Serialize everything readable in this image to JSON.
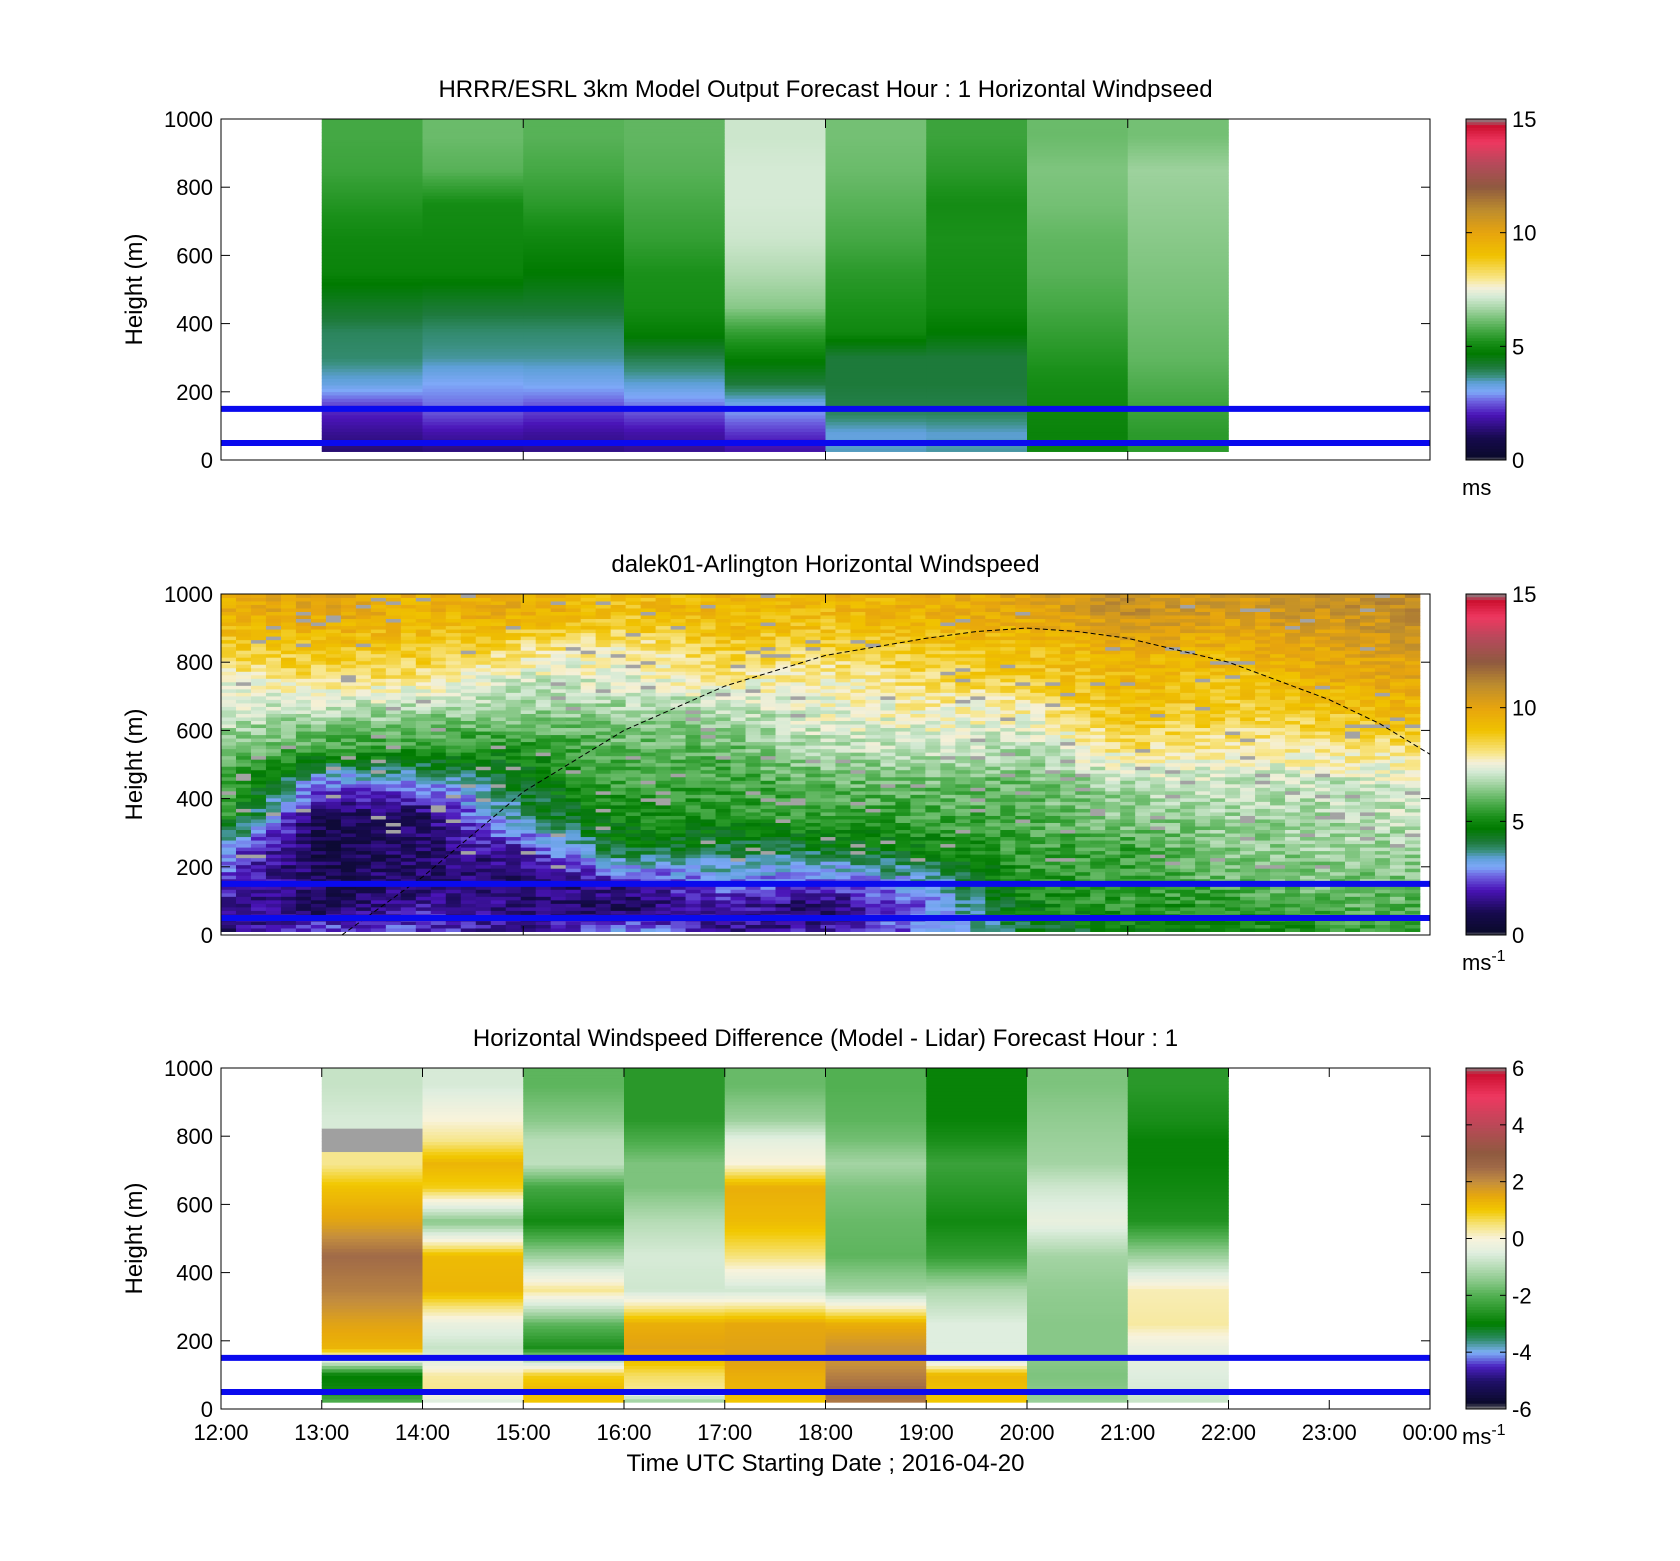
{
  "chart_data": [
    {
      "type": "heatmap",
      "title": "HRRR/ESRL 3km Model Output   Forecast Hour : 1 Horizontal Windpseed",
      "ylabel": "Height (m)",
      "ylim": [
        0,
        1000
      ],
      "yticks": [
        0,
        200,
        400,
        600,
        800,
        1000
      ],
      "xlim": [
        12,
        24
      ],
      "xticks": [
        12,
        15,
        18,
        21
      ],
      "colorbar": {
        "min": 0,
        "max": 15,
        "ticks": [
          0,
          5,
          10,
          15
        ],
        "unit": "ms",
        "unit_sup": ""
      },
      "reference_lines_m": [
        50,
        150
      ],
      "columns": [
        {
          "t0": 13,
          "t1": 14,
          "zmin": 25,
          "heights": [
            25,
            75,
            150,
            225,
            300,
            375,
            450,
            550,
            650,
            750,
            850,
            950
          ],
          "values": [
            1.3,
            1.6,
            2.2,
            3.3,
            3.8,
            3.9,
            4.3,
            4.9,
            5.0,
            5.3,
            5.6,
            5.7
          ]
        },
        {
          "t0": 14,
          "t1": 15,
          "zmin": 25,
          "heights": [
            25,
            75,
            150,
            225,
            300,
            375,
            450,
            550,
            650,
            750,
            850,
            950
          ],
          "values": [
            1.4,
            1.8,
            2.6,
            3.0,
            3.6,
            3.8,
            4.2,
            4.9,
            5.0,
            5.1,
            5.9,
            6.1
          ]
        },
        {
          "t0": 15,
          "t1": 16,
          "zmin": 25,
          "heights": [
            25,
            75,
            150,
            225,
            300,
            375,
            450,
            550,
            650,
            750,
            850,
            950
          ],
          "values": [
            1.5,
            1.7,
            2.4,
            3.1,
            3.6,
            3.8,
            4.2,
            4.7,
            5.0,
            5.4,
            5.7,
            5.9
          ]
        },
        {
          "t0": 16,
          "t1": 17,
          "zmin": 25,
          "heights": [
            25,
            75,
            150,
            225,
            300,
            375,
            450,
            550,
            650,
            750,
            850,
            950
          ],
          "values": [
            1.6,
            1.8,
            2.6,
            3.4,
            4.0,
            4.8,
            5.1,
            5.2,
            5.5,
            5.7,
            5.9,
            6.0
          ]
        },
        {
          "t0": 17,
          "t1": 18,
          "zmin": 25,
          "heights": [
            25,
            75,
            150,
            225,
            300,
            375,
            450,
            550,
            650,
            750,
            850,
            950
          ],
          "values": [
            1.8,
            2.2,
            3.0,
            4.1,
            4.8,
            5.5,
            6.4,
            6.8,
            7.1,
            7.2,
            7.2,
            7.1
          ]
        },
        {
          "t0": 18,
          "t1": 19,
          "zmin": 25,
          "heights": [
            25,
            75,
            150,
            225,
            300,
            375,
            450,
            550,
            650,
            750,
            850,
            950
          ],
          "values": [
            3.5,
            3.3,
            4.0,
            4.1,
            4.1,
            5.0,
            5.2,
            5.4,
            5.7,
            5.9,
            6.1,
            6.2
          ]
        },
        {
          "t0": 19,
          "t1": 20,
          "zmin": 25,
          "heights": [
            25,
            75,
            150,
            225,
            300,
            375,
            450,
            550,
            650,
            750,
            850,
            950
          ],
          "values": [
            3.6,
            3.4,
            4.0,
            4.1,
            4.1,
            4.7,
            5.0,
            5.1,
            5.2,
            5.1,
            5.4,
            5.6
          ]
        },
        {
          "t0": 20,
          "t1": 21,
          "zmin": 25,
          "heights": [
            25,
            75,
            150,
            225,
            300,
            375,
            450,
            550,
            650,
            750,
            850,
            950
          ],
          "values": [
            5.0,
            4.9,
            5.0,
            5.1,
            5.3,
            5.5,
            5.7,
            5.9,
            6.0,
            6.2,
            6.3,
            6.1
          ]
        },
        {
          "t0": 21,
          "t1": 22,
          "zmin": 25,
          "heights": [
            25,
            75,
            150,
            225,
            300,
            375,
            450,
            550,
            650,
            750,
            850,
            950
          ],
          "values": [
            5.4,
            5.4,
            5.6,
            5.8,
            6.0,
            6.1,
            6.2,
            6.3,
            6.4,
            6.5,
            6.6,
            6.2
          ]
        }
      ]
    },
    {
      "type": "heatmap",
      "title": "dalek01-Arlington  Horizontal Windspeed",
      "ylabel": "Height (m)",
      "ylim": [
        0,
        1000
      ],
      "yticks": [
        0,
        200,
        400,
        600,
        800,
        1000
      ],
      "xlim": [
        12,
        24
      ],
      "xticks": [
        12,
        15,
        18,
        21
      ],
      "colorbar": {
        "min": 0,
        "max": 15,
        "ticks": [
          0,
          5,
          10,
          15
        ],
        "unit": "ms",
        "unit_sup": "-1"
      },
      "reference_lines_m": [
        50,
        150
      ],
      "data_x_end": 23.9,
      "boundary_layer_curve": {
        "t": [
          13.2,
          14,
          15,
          16,
          17,
          18,
          19,
          19.5,
          20,
          20.5,
          21,
          22,
          23,
          23.5,
          24
        ],
        "height_m": [
          0,
          170,
          420,
          600,
          730,
          820,
          870,
          890,
          900,
          890,
          870,
          800,
          690,
          620,
          530
        ]
      },
      "field_samples": {
        "t": [
          12,
          13,
          14,
          15,
          16,
          17,
          18,
          19,
          20,
          21,
          22,
          23,
          24
        ],
        "heights_m": [
          20,
          80,
          150,
          250,
          350,
          450,
          550,
          650,
          750,
          850,
          950
        ],
        "values": [
          [
            1.3,
            1.8,
            2.4,
            2.8,
            5.6,
            6.0,
            6.4,
            7.1,
            7.6,
            8.8,
            9.6
          ],
          [
            2.4,
            1.0,
            1.0,
            0.8,
            0.8,
            2.8,
            5.6,
            6.8,
            8.2,
            9.1,
            10.0
          ],
          [
            2.3,
            1.9,
            1.3,
            1.2,
            1.2,
            3.0,
            5.5,
            6.5,
            8.0,
            9.0,
            9.5
          ],
          [
            1.4,
            1.6,
            1.1,
            2.0,
            3.8,
            4.4,
            5.2,
            6.4,
            7.1,
            8.3,
            9.8
          ],
          [
            3.0,
            0.9,
            1.8,
            4.4,
            5.1,
            5.6,
            6.0,
            6.6,
            7.3,
            8.0,
            9.1
          ],
          [
            1.6,
            1.9,
            2.7,
            4.0,
            5.3,
            5.6,
            6.0,
            6.7,
            7.8,
            8.8,
            9.5
          ],
          [
            1.9,
            1.0,
            2.3,
            4.2,
            5.5,
            6.0,
            6.9,
            7.4,
            7.8,
            8.5,
            9.3
          ],
          [
            2.8,
            2.7,
            3.2,
            4.8,
            5.6,
            6.2,
            7.1,
            7.6,
            8.2,
            8.9,
            9.6
          ],
          [
            4.2,
            4.9,
            5.2,
            5.6,
            5.9,
            6.1,
            6.8,
            7.7,
            8.7,
            9.2,
            10.0
          ],
          [
            4.7,
            5.3,
            5.6,
            5.6,
            6.4,
            6.9,
            8.2,
            9.0,
            9.3,
            9.7,
            10.8
          ],
          [
            5.0,
            5.3,
            6.0,
            6.3,
            6.6,
            7.1,
            7.9,
            8.6,
            8.9,
            9.6,
            10.4
          ],
          [
            5.4,
            5.9,
            6.2,
            6.6,
            6.8,
            7.0,
            8.0,
            8.9,
            9.6,
            10.1,
            10.7
          ],
          [
            5.7,
            5.8,
            6.2,
            6.7,
            7.0,
            7.3,
            8.3,
            9.3,
            10.0,
            10.5,
            10.8
          ]
        ]
      }
    },
    {
      "type": "heatmap",
      "title": "Horizontal Windspeed Difference (Model - Lidar) Forecast Hour : 1",
      "ylabel": "Height (m)",
      "xlabel": "Time UTC  Starting Date ; 2016-04-20",
      "ylim": [
        0,
        1000
      ],
      "yticks": [
        0,
        200,
        400,
        600,
        800,
        1000
      ],
      "xlim": [
        12,
        24
      ],
      "xticks": [
        12,
        13,
        14,
        15,
        16,
        17,
        18,
        19,
        20,
        21,
        22,
        23,
        24
      ],
      "xticklabels": [
        "12:00",
        "13:00",
        "14:00",
        "15:00",
        "16:00",
        "17:00",
        "18:00",
        "19:00",
        "20:00",
        "21:00",
        "22:00",
        "23:00",
        "00:00"
      ],
      "colorbar": {
        "min": -6,
        "max": 6,
        "ticks": [
          -6,
          -4,
          -2,
          0,
          2,
          4,
          6
        ],
        "unit": "ms",
        "unit_sup": "-1"
      },
      "reference_lines_m": [
        50,
        150
      ],
      "columns": [
        {
          "t0": 13,
          "t1": 14,
          "zmin": 20,
          "heights": [
            20,
            60,
            100,
            140,
            180,
            250,
            350,
            450,
            550,
            650,
            720,
            790,
            850,
            950
          ],
          "values": [
            -2.0,
            -2.8,
            -3.0,
            -0.6,
            1.3,
            1.6,
            2.2,
            2.5,
            1.6,
            1.1,
            0.4,
            "missing",
            -0.6,
            -0.8
          ]
        },
        {
          "t0": 14,
          "t1": 15,
          "zmin": 20,
          "heights": [
            20,
            60,
            100,
            140,
            180,
            250,
            350,
            450,
            550,
            650,
            720,
            790,
            850,
            950
          ],
          "values": [
            -0.6,
            0.4,
            0.3,
            -0.4,
            -0.8,
            -0.3,
            1.3,
            1.2,
            -1.5,
            0.9,
            1.3,
            0.4,
            0.0,
            -0.6
          ]
        },
        {
          "t0": 15,
          "t1": 16,
          "zmin": 20,
          "heights": [
            20,
            60,
            100,
            140,
            180,
            250,
            350,
            450,
            550,
            650,
            720,
            790,
            850,
            950
          ],
          "values": [
            1.0,
            1.2,
            0.9,
            -0.8,
            -2.7,
            -1.9,
            0.4,
            -1.3,
            -2.8,
            -2.2,
            -0.9,
            -1.0,
            -1.5,
            -1.9
          ]
        },
        {
          "t0": 16,
          "t1": 17,
          "zmin": 20,
          "heights": [
            20,
            60,
            100,
            140,
            180,
            250,
            350,
            450,
            550,
            650,
            720,
            790,
            850,
            950
          ],
          "values": [
            -1.4,
            0.4,
            0.6,
            1.1,
            1.6,
            1.4,
            -0.7,
            -0.6,
            -1.0,
            -1.6,
            -1.6,
            -2.1,
            -2.5,
            -2.5
          ]
        },
        {
          "t0": 17,
          "t1": 18,
          "zmin": 20,
          "heights": [
            20,
            60,
            100,
            140,
            180,
            250,
            350,
            450,
            550,
            650,
            720,
            790,
            850,
            950
          ],
          "values": [
            1.0,
            1.3,
            1.4,
            1.6,
            1.6,
            1.5,
            -0.7,
            0.5,
            1.2,
            1.4,
            0.0,
            -0.4,
            -1.3,
            -1.8
          ]
        },
        {
          "t0": 18,
          "t1": 19,
          "zmin": 20,
          "heights": [
            20,
            60,
            100,
            140,
            180,
            250,
            350,
            450,
            550,
            650,
            720,
            790,
            850,
            950
          ],
          "values": [
            2.3,
            2.5,
            2.2,
            1.9,
            1.9,
            1.4,
            -1.2,
            -1.9,
            -1.8,
            -1.6,
            -1.2,
            -1.7,
            -1.9,
            -2.0
          ]
        },
        {
          "t0": 19,
          "t1": 20,
          "zmin": 20,
          "heights": [
            20,
            60,
            100,
            140,
            180,
            250,
            350,
            450,
            550,
            650,
            720,
            790,
            850,
            950
          ],
          "values": [
            1.0,
            1.1,
            1.3,
            -0.4,
            -0.5,
            -0.5,
            -1.1,
            -2.4,
            -2.8,
            -2.5,
            -2.3,
            -2.7,
            -2.9,
            -2.9
          ]
        },
        {
          "t0": 20,
          "t1": 21,
          "zmin": 20,
          "heights": [
            20,
            60,
            100,
            140,
            180,
            250,
            350,
            450,
            550,
            650,
            720,
            790,
            850,
            950
          ],
          "values": [
            -1.3,
            -1.5,
            -1.6,
            -1.5,
            -1.5,
            -1.5,
            -1.4,
            -1.2,
            -0.3,
            -0.7,
            -1.2,
            -1.3,
            -1.4,
            -1.6
          ]
        },
        {
          "t0": 21,
          "t1": 22,
          "zmin": 20,
          "heights": [
            20,
            60,
            100,
            140,
            180,
            250,
            350,
            450,
            550,
            650,
            720,
            790,
            850,
            950
          ],
          "values": [
            -0.8,
            -0.6,
            -0.5,
            -0.4,
            -0.3,
            0.3,
            0.2,
            -1.3,
            -2.6,
            -2.8,
            -2.9,
            -2.9,
            -2.7,
            -2.5
          ]
        }
      ]
    }
  ]
}
